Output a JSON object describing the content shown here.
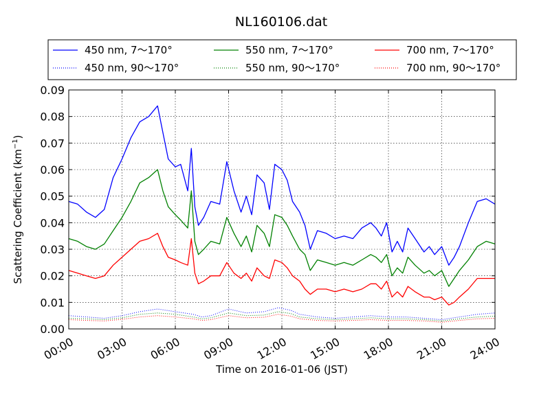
{
  "chart_data": {
    "type": "line",
    "title": "NL160106.dat",
    "xlabel": "Time on 2016-01-06 (JST)",
    "ylabel": "Scattering Coefficient (km",
    "ylabel_sup": "−1",
    "ylabel_end": ")",
    "xlim": [
      0,
      24
    ],
    "ylim": [
      0,
      0.09
    ],
    "x_ticks": [
      0,
      3,
      6,
      9,
      12,
      15,
      18,
      21,
      24
    ],
    "x_tick_labels": [
      "00:00",
      "03:00",
      "06:00",
      "09:00",
      "12:00",
      "15:00",
      "18:00",
      "21:00",
      "24:00"
    ],
    "y_ticks": [
      0,
      0.01,
      0.02,
      0.03,
      0.04,
      0.05,
      0.06,
      0.07,
      0.08,
      0.09
    ],
    "y_tick_labels": [
      "0.00",
      "0.01",
      "0.02",
      "0.03",
      "0.04",
      "0.05",
      "0.06",
      "0.07",
      "0.08",
      "0.09"
    ],
    "grid": true,
    "legend_position": "top, above plot, 3 columns",
    "series": [
      {
        "name": "450 nm, 7～170°",
        "color": "#0000ff",
        "style": "solid",
        "x": [
          0,
          0.5,
          1,
          1.5,
          2,
          2.5,
          3,
          3.5,
          4,
          4.5,
          5,
          5.3,
          5.6,
          6,
          6.3,
          6.7,
          6.9,
          7.1,
          7.3,
          7.6,
          8,
          8.5,
          8.9,
          9.3,
          9.7,
          10,
          10.3,
          10.6,
          11,
          11.3,
          11.6,
          12,
          12.3,
          12.6,
          13,
          13.3,
          13.6,
          14,
          14.5,
          15,
          15.5,
          16,
          16.5,
          17,
          17.3,
          17.6,
          17.9,
          18.2,
          18.5,
          18.8,
          19.1,
          19.5,
          20,
          20.3,
          20.6,
          21,
          21.4,
          21.7,
          22,
          22.5,
          23,
          23.5,
          24
        ],
        "y": [
          0.048,
          0.047,
          0.044,
          0.042,
          0.045,
          0.057,
          0.064,
          0.072,
          0.078,
          0.08,
          0.084,
          0.074,
          0.064,
          0.061,
          0.062,
          0.052,
          0.068,
          0.046,
          0.039,
          0.042,
          0.048,
          0.047,
          0.063,
          0.052,
          0.044,
          0.05,
          0.043,
          0.058,
          0.055,
          0.045,
          0.062,
          0.06,
          0.056,
          0.048,
          0.044,
          0.039,
          0.03,
          0.037,
          0.036,
          0.034,
          0.035,
          0.034,
          0.038,
          0.04,
          0.038,
          0.035,
          0.04,
          0.029,
          0.033,
          0.029,
          0.038,
          0.034,
          0.029,
          0.031,
          0.028,
          0.031,
          0.024,
          0.027,
          0.031,
          0.04,
          0.048,
          0.049,
          0.047
        ]
      },
      {
        "name": "450 nm, 90～170°",
        "color": "#0000ff",
        "style": "dotted",
        "x": [
          0,
          1,
          2,
          3,
          4,
          5,
          6,
          7,
          7.5,
          8,
          9,
          10,
          11,
          11.8,
          12.5,
          13,
          14,
          15,
          16,
          17,
          18,
          19,
          20,
          21,
          22,
          23,
          24
        ],
        "y": [
          0.005,
          0.0045,
          0.004,
          0.005,
          0.0065,
          0.0075,
          0.0065,
          0.0055,
          0.0045,
          0.005,
          0.0075,
          0.006,
          0.0065,
          0.008,
          0.007,
          0.0055,
          0.0045,
          0.004,
          0.0045,
          0.005,
          0.0045,
          0.0045,
          0.004,
          0.0035,
          0.0045,
          0.0055,
          0.006
        ]
      },
      {
        "name": "550 nm, 7～170°",
        "color": "#008000",
        "style": "solid",
        "x": [
          0,
          0.5,
          1,
          1.5,
          2,
          2.5,
          3,
          3.5,
          4,
          4.5,
          5,
          5.3,
          5.6,
          6,
          6.3,
          6.7,
          6.9,
          7.1,
          7.3,
          7.6,
          8,
          8.5,
          8.9,
          9.3,
          9.7,
          10,
          10.3,
          10.6,
          11,
          11.3,
          11.6,
          12,
          12.3,
          12.6,
          13,
          13.3,
          13.6,
          14,
          14.5,
          15,
          15.5,
          16,
          16.5,
          17,
          17.3,
          17.6,
          17.9,
          18.2,
          18.5,
          18.8,
          19.1,
          19.5,
          20,
          20.3,
          20.6,
          21,
          21.4,
          21.7,
          22,
          22.5,
          23,
          23.5,
          24
        ],
        "y": [
          0.034,
          0.033,
          0.031,
          0.03,
          0.032,
          0.037,
          0.042,
          0.048,
          0.055,
          0.057,
          0.06,
          0.052,
          0.046,
          0.043,
          0.041,
          0.038,
          0.052,
          0.033,
          0.028,
          0.03,
          0.033,
          0.032,
          0.042,
          0.036,
          0.031,
          0.035,
          0.029,
          0.039,
          0.036,
          0.031,
          0.043,
          0.042,
          0.039,
          0.035,
          0.03,
          0.028,
          0.022,
          0.026,
          0.025,
          0.024,
          0.025,
          0.024,
          0.026,
          0.028,
          0.027,
          0.025,
          0.028,
          0.02,
          0.023,
          0.021,
          0.027,
          0.024,
          0.021,
          0.022,
          0.02,
          0.022,
          0.016,
          0.019,
          0.022,
          0.026,
          0.031,
          0.033,
          0.032
        ]
      },
      {
        "name": "550 nm, 90～170°",
        "color": "#008000",
        "style": "dotted",
        "x": [
          0,
          1,
          2,
          3,
          4,
          5,
          6,
          7,
          7.5,
          8,
          9,
          10,
          11,
          11.8,
          12.5,
          13,
          14,
          15,
          16,
          17,
          18,
          19,
          20,
          21,
          22,
          23,
          24
        ],
        "y": [
          0.004,
          0.0038,
          0.0035,
          0.0042,
          0.0055,
          0.006,
          0.0055,
          0.0045,
          0.0038,
          0.0042,
          0.006,
          0.005,
          0.0052,
          0.0065,
          0.0058,
          0.0045,
          0.0038,
          0.0035,
          0.0038,
          0.0042,
          0.0038,
          0.0038,
          0.0035,
          0.003,
          0.0038,
          0.0045,
          0.0048
        ]
      },
      {
        "name": "700 nm, 7～170°",
        "color": "#ff0000",
        "style": "solid",
        "x": [
          0,
          0.5,
          1,
          1.5,
          2,
          2.5,
          3,
          3.5,
          4,
          4.5,
          5,
          5.3,
          5.6,
          6,
          6.3,
          6.7,
          6.9,
          7.1,
          7.3,
          7.6,
          8,
          8.5,
          8.9,
          9.3,
          9.7,
          10,
          10.3,
          10.6,
          11,
          11.3,
          11.6,
          12,
          12.3,
          12.6,
          13,
          13.3,
          13.6,
          14,
          14.5,
          15,
          15.5,
          16,
          16.5,
          17,
          17.3,
          17.6,
          17.9,
          18.2,
          18.5,
          18.8,
          19.1,
          19.5,
          20,
          20.3,
          20.6,
          21,
          21.4,
          21.7,
          22,
          22.5,
          23,
          23.5,
          24
        ],
        "y": [
          0.022,
          0.021,
          0.02,
          0.019,
          0.02,
          0.024,
          0.027,
          0.03,
          0.033,
          0.034,
          0.036,
          0.031,
          0.027,
          0.026,
          0.025,
          0.024,
          0.034,
          0.021,
          0.017,
          0.018,
          0.02,
          0.02,
          0.025,
          0.021,
          0.019,
          0.021,
          0.018,
          0.023,
          0.02,
          0.019,
          0.026,
          0.025,
          0.023,
          0.02,
          0.018,
          0.015,
          0.013,
          0.015,
          0.015,
          0.014,
          0.015,
          0.014,
          0.015,
          0.017,
          0.017,
          0.015,
          0.018,
          0.012,
          0.014,
          0.012,
          0.016,
          0.014,
          0.012,
          0.012,
          0.011,
          0.012,
          0.009,
          0.01,
          0.012,
          0.015,
          0.019,
          0.019,
          0.019
        ]
      },
      {
        "name": "700 nm, 90～170°",
        "color": "#ff0000",
        "style": "dotted",
        "x": [
          0,
          1,
          2,
          3,
          4,
          5,
          6,
          7,
          7.5,
          8,
          9,
          10,
          11,
          11.8,
          12.5,
          13,
          14,
          15,
          16,
          17,
          18,
          19,
          20,
          21,
          22,
          23,
          24
        ],
        "y": [
          0.0035,
          0.0032,
          0.003,
          0.0036,
          0.0045,
          0.005,
          0.0045,
          0.0038,
          0.0032,
          0.0035,
          0.005,
          0.0042,
          0.0044,
          0.0055,
          0.0048,
          0.0038,
          0.0032,
          0.003,
          0.0032,
          0.0035,
          0.0032,
          0.0032,
          0.003,
          0.0025,
          0.0032,
          0.0038,
          0.004
        ]
      }
    ]
  }
}
